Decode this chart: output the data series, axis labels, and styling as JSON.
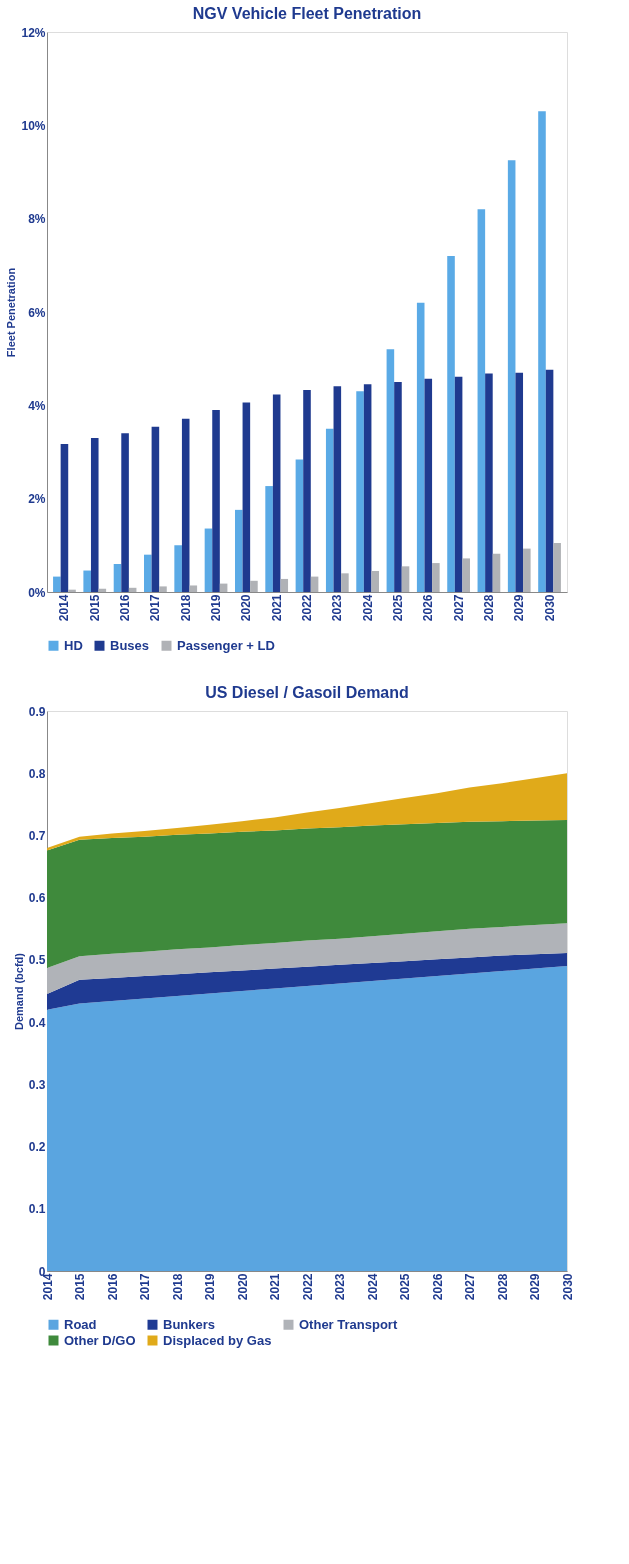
{
  "chart_data": [
    {
      "type": "bar",
      "title": "NGV Vehicle Fleet Penetration",
      "ylabel": "Fleet Penetration",
      "categories": [
        "2014",
        "2015",
        "2016",
        "2017",
        "2018",
        "2019",
        "2020",
        "2021",
        "2022",
        "2023",
        "2024",
        "2025",
        "2026",
        "2027",
        "2028",
        "2029",
        "2030"
      ],
      "series": [
        {
          "name": "HD",
          "color": "#5aaae6",
          "values": [
            0.33,
            0.46,
            0.6,
            0.8,
            1.0,
            1.36,
            1.76,
            2.27,
            2.84,
            3.5,
            4.3,
            5.2,
            6.2,
            7.2,
            8.2,
            9.25,
            10.3
          ]
        },
        {
          "name": "Buses",
          "color": "#1f3a8f",
          "values": [
            3.17,
            3.3,
            3.4,
            3.54,
            3.71,
            3.9,
            4.06,
            4.23,
            4.33,
            4.41,
            4.45,
            4.5,
            4.57,
            4.61,
            4.68,
            4.7,
            4.76
          ]
        },
        {
          "name": "Passenger + LD",
          "color": "#b0b2b6",
          "values": [
            0.05,
            0.07,
            0.09,
            0.12,
            0.14,
            0.18,
            0.24,
            0.28,
            0.33,
            0.4,
            0.45,
            0.55,
            0.62,
            0.72,
            0.82,
            0.93,
            1.05
          ]
        }
      ],
      "ylim": [
        0,
        12
      ],
      "yticks": [
        {
          "value": 0,
          "label": "0%"
        },
        {
          "value": 2,
          "label": "2%"
        },
        {
          "value": 4,
          "label": "4%"
        },
        {
          "value": 6,
          "label": "6%"
        },
        {
          "value": 8,
          "label": "8%"
        },
        {
          "value": 10,
          "label": "10%"
        },
        {
          "value": 12,
          "label": "12%"
        }
      ],
      "grid": false,
      "legend": "bottom"
    },
    {
      "type": "area",
      "stacked": true,
      "title": "US Diesel / Gasoil Demand",
      "ylabel": "Demand (bcfd)",
      "x": [
        2014,
        2015,
        2016,
        2017,
        2018,
        2019,
        2020,
        2021,
        2022,
        2023,
        2024,
        2025,
        2026,
        2027,
        2028,
        2029,
        2030
      ],
      "series": [
        {
          "name": "Road",
          "color": "#5aa5e0",
          "values": [
            0.42,
            0.43,
            0.434,
            0.438,
            0.442,
            0.446,
            0.45,
            0.454,
            0.458,
            0.462,
            0.466,
            0.47,
            0.474,
            0.478,
            0.482,
            0.486,
            0.49
          ]
        },
        {
          "name": "Bunkers",
          "color": "#1f3a93",
          "values": [
            0.025,
            0.038,
            0.037,
            0.036,
            0.035,
            0.034,
            0.033,
            0.032,
            0.031,
            0.03,
            0.029,
            0.028,
            0.027,
            0.026,
            0.025,
            0.023,
            0.021
          ]
        },
        {
          "name": "Other Transport",
          "color": "#b0b3b8",
          "values": [
            0.042,
            0.038,
            0.039,
            0.039,
            0.04,
            0.04,
            0.041,
            0.041,
            0.042,
            0.042,
            0.043,
            0.044,
            0.045,
            0.046,
            0.046,
            0.047,
            0.048
          ]
        },
        {
          "name": "Other D/GO",
          "color": "#3f8a3c",
          "values": [
            0.189,
            0.187,
            0.186,
            0.185,
            0.184,
            0.183,
            0.182,
            0.181,
            0.18,
            0.179,
            0.178,
            0.176,
            0.174,
            0.172,
            0.17,
            0.168,
            0.166
          ]
        },
        {
          "name": "Displaced by Gas",
          "color": "#e0aa1a",
          "values": [
            0.004,
            0.005,
            0.007,
            0.009,
            0.011,
            0.014,
            0.017,
            0.021,
            0.026,
            0.031,
            0.036,
            0.042,
            0.048,
            0.055,
            0.061,
            0.068,
            0.075
          ]
        }
      ],
      "xlim": [
        2014,
        2030
      ],
      "xticks": [
        2014,
        2015,
        2016,
        2017,
        2018,
        2019,
        2020,
        2021,
        2022,
        2023,
        2024,
        2025,
        2026,
        2027,
        2028,
        2029,
        2030
      ],
      "ylim": [
        0,
        0.9
      ],
      "yticks": [
        {
          "value": 0,
          "label": "0"
        },
        0.1,
        0.2,
        0.3,
        0.4,
        0.5,
        0.6,
        0.7,
        0.8,
        0.9
      ],
      "grid": false,
      "legend": "bottom"
    }
  ]
}
